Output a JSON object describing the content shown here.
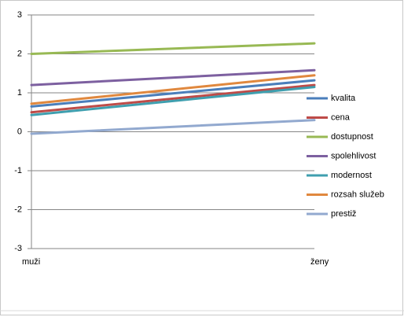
{
  "chart_data": {
    "type": "line",
    "categories": [
      "muži",
      "ženy"
    ],
    "series": [
      {
        "name": "kvalita",
        "color": "#4a7ebb",
        "values": [
          0.65,
          1.32
        ]
      },
      {
        "name": "cena",
        "color": "#be4b48",
        "values": [
          0.5,
          1.2
        ]
      },
      {
        "name": "dostupnost",
        "color": "#98b954",
        "values": [
          2.0,
          2.27
        ]
      },
      {
        "name": "spolehlivost",
        "color": "#7d60a0",
        "values": [
          1.2,
          1.58
        ]
      },
      {
        "name": "modernost",
        "color": "#3f9faf",
        "values": [
          0.43,
          1.15
        ]
      },
      {
        "name": "rozsah služeb",
        "color": "#e0883e",
        "values": [
          0.72,
          1.45
        ]
      },
      {
        "name": "prestiž",
        "color": "#92a9cf",
        "values": [
          -0.05,
          0.3
        ]
      }
    ],
    "ylim": [
      -3,
      3
    ],
    "yticks": [
      -3,
      -2,
      -1,
      0,
      1,
      2,
      3
    ],
    "grid": true,
    "legend": "right"
  }
}
